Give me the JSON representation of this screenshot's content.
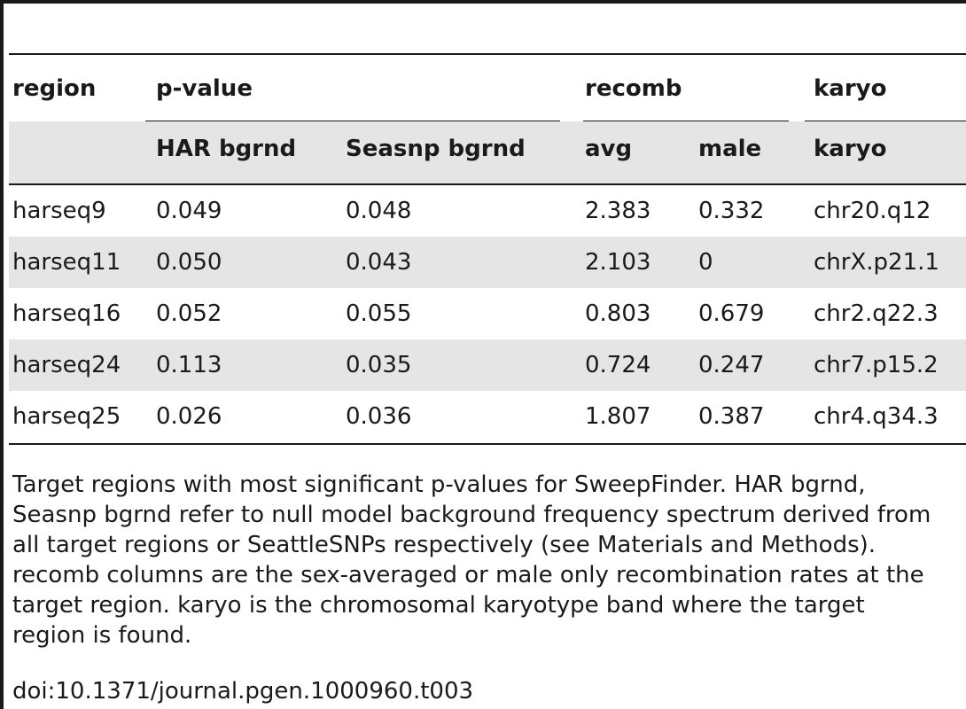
{
  "table": {
    "header1": {
      "region": "region",
      "pvalue": "p-value",
      "recomb": "recomb",
      "karyo": "karyo"
    },
    "header2": {
      "har": "HAR bgrnd",
      "seasnp": "Seasnp bgrnd",
      "avg": "avg",
      "male": "male",
      "karyo": "karyo"
    },
    "rows": [
      {
        "region": "harseq9",
        "har": "0.049",
        "seasnp": "0.048",
        "avg": "2.383",
        "male": "0.332",
        "karyo": "chr20.q12"
      },
      {
        "region": "harseq11",
        "har": "0.050",
        "seasnp": "0.043",
        "avg": "2.103",
        "male": "0",
        "karyo": "chrX.p21.1"
      },
      {
        "region": "harseq16",
        "har": "0.052",
        "seasnp": "0.055",
        "avg": "0.803",
        "male": "0.679",
        "karyo": "chr2.q22.3"
      },
      {
        "region": "harseq24",
        "har": "0.113",
        "seasnp": "0.035",
        "avg": "0.724",
        "male": "0.247",
        "karyo": "chr7.p15.2"
      },
      {
        "region": "harseq25",
        "har": "0.026",
        "seasnp": "0.036",
        "avg": "1.807",
        "male": "0.387",
        "karyo": "chr4.q34.3"
      }
    ]
  },
  "footnote": {
    "lines": [
      "Target regions with most significant p-values for SweepFinder. HAR bgrnd,",
      "Seasnp bgrnd refer to null model background frequency spectrum derived from",
      "all target regions or SeattleSNPs respectively (see Materials and Methods).",
      "recomb columns are the sex-averaged or male only recombination rates at the",
      "target region. karyo is the chromosomal karyotype band where the target",
      "region is found."
    ],
    "doi": "doi:10.1371/journal.pgen.1000960.t003"
  }
}
